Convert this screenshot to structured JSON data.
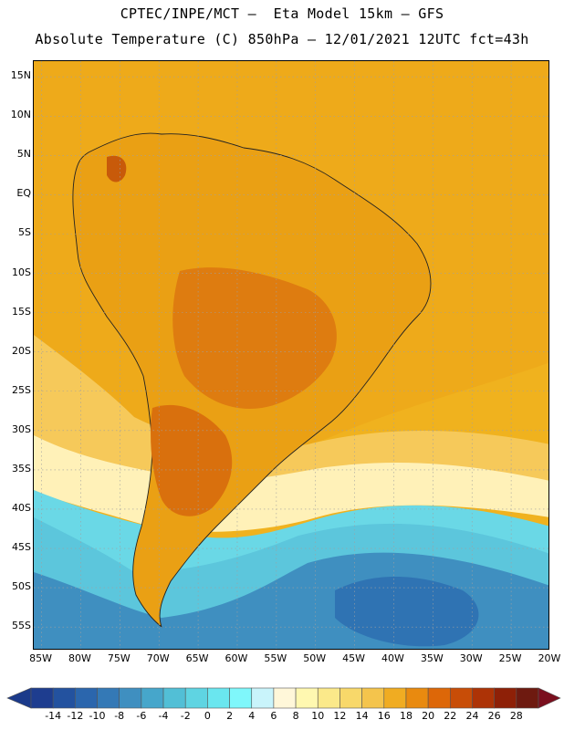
{
  "header": {
    "line1": "CPTEC/INPE/MCT –  Eta Model 15km – GFS",
    "line2": "Absolute Temperature (C) 850hPa – 12/01/2021 12UTC fct=43h"
  },
  "map": {
    "lat_labels": [
      "15N",
      "10N",
      "5N",
      "EQ",
      "5S",
      "10S",
      "15S",
      "20S",
      "25S",
      "30S",
      "35S",
      "40S",
      "45S",
      "50S",
      "55S"
    ],
    "lon_labels": [
      "85W",
      "80W",
      "75W",
      "70W",
      "65W",
      "60W",
      "55W",
      "50W",
      "45W",
      "40W",
      "35W",
      "30W",
      "25W",
      "20W"
    ],
    "lon_range": [
      -86,
      -20
    ],
    "lat_range": [
      17,
      -58
    ]
  },
  "colorbar": {
    "labels": [
      "-14",
      "-12",
      "-10",
      "-8",
      "-6",
      "-4",
      "-2",
      "0",
      "2",
      "4",
      "6",
      "8",
      "10",
      "12",
      "14",
      "16",
      "18",
      "20",
      "22",
      "24",
      "26",
      "28"
    ],
    "colors": [
      "#1e3d8f",
      "#23529f",
      "#2b66ad",
      "#3479b6",
      "#3f8fc0",
      "#46a6cb",
      "#52bfd6",
      "#5fd4e2",
      "#6ae6ef",
      "#7ff7fb",
      "#c9f4fb",
      "#fff7d9",
      "#fff8b0",
      "#fbe98a",
      "#f8d86a",
      "#f4c44c",
      "#f0ac22",
      "#e98a0f",
      "#dd6708",
      "#c84d07",
      "#ad3306",
      "#8e2007",
      "#6e1a10"
    ],
    "low_arrow_color": "#1b3a8a",
    "high_arrow_color": "#7a0f1e"
  },
  "palette": {
    "ocean_warm": "#f0b21e",
    "ocean_mid": "#f4c44c",
    "land": "#eaa014",
    "land_hot": "#de7c10",
    "pale": "#fff1b8",
    "cool": "#5cc6dc",
    "cold": "#3f8fc0",
    "colder": "#2f73b3"
  }
}
